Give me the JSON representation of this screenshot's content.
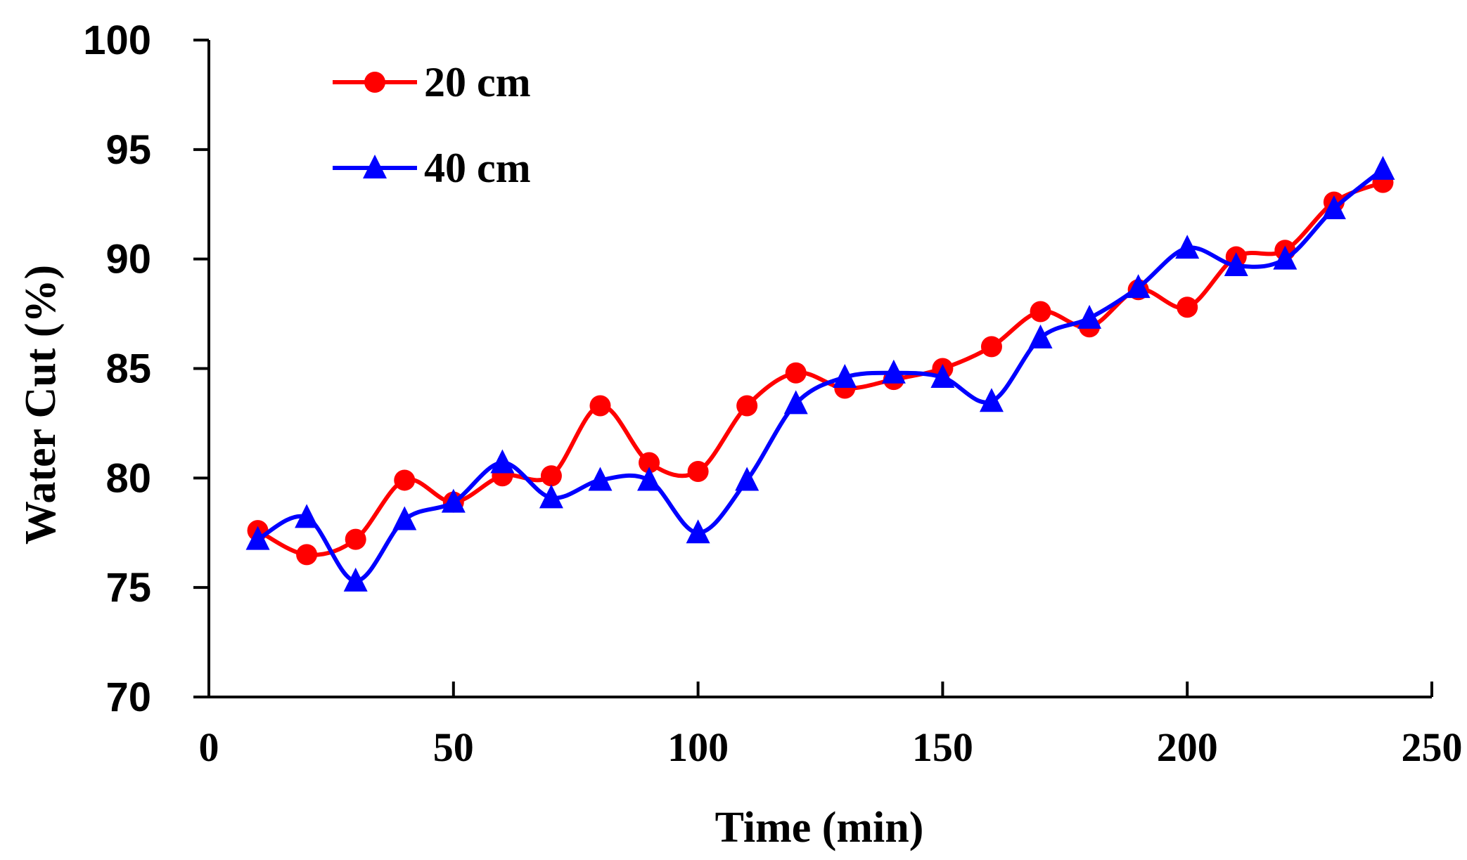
{
  "chart_data": {
    "type": "line",
    "title": "",
    "xlabel": "Time  (min)",
    "ylabel": "Water Cut  (%)",
    "xlim": [
      0,
      250
    ],
    "ylim": [
      70,
      100
    ],
    "xticks": [
      0,
      50,
      100,
      150,
      200,
      250
    ],
    "yticks": [
      70,
      75,
      80,
      85,
      90,
      95,
      100
    ],
    "grid": false,
    "legend_position": "top-left",
    "series": [
      {
        "name": "20 cm",
        "color": "#ff0000",
        "marker": "circle",
        "x": [
          10,
          20,
          30,
          40,
          50,
          60,
          70,
          80,
          90,
          100,
          110,
          120,
          130,
          140,
          150,
          160,
          170,
          180,
          190,
          200,
          210,
          220,
          230,
          240
        ],
        "values": [
          77.6,
          76.5,
          77.2,
          79.9,
          78.9,
          80.1,
          80.1,
          83.3,
          80.7,
          80.3,
          83.3,
          84.8,
          84.1,
          84.5,
          85.0,
          86.0,
          87.6,
          86.9,
          88.6,
          87.8,
          90.1,
          90.4,
          92.6,
          93.5
        ]
      },
      {
        "name": "40 cm",
        "color": "#0000ff",
        "marker": "triangle",
        "x": [
          10,
          20,
          30,
          40,
          50,
          60,
          70,
          80,
          90,
          100,
          110,
          120,
          130,
          140,
          150,
          160,
          170,
          180,
          190,
          200,
          210,
          220,
          230,
          240
        ],
        "values": [
          77.2,
          78.2,
          75.3,
          78.1,
          78.9,
          80.7,
          79.1,
          79.9,
          79.9,
          77.5,
          79.9,
          83.4,
          84.6,
          84.8,
          84.6,
          83.5,
          86.4,
          87.3,
          88.7,
          90.5,
          89.7,
          90.0,
          92.3,
          94.1
        ]
      }
    ]
  }
}
